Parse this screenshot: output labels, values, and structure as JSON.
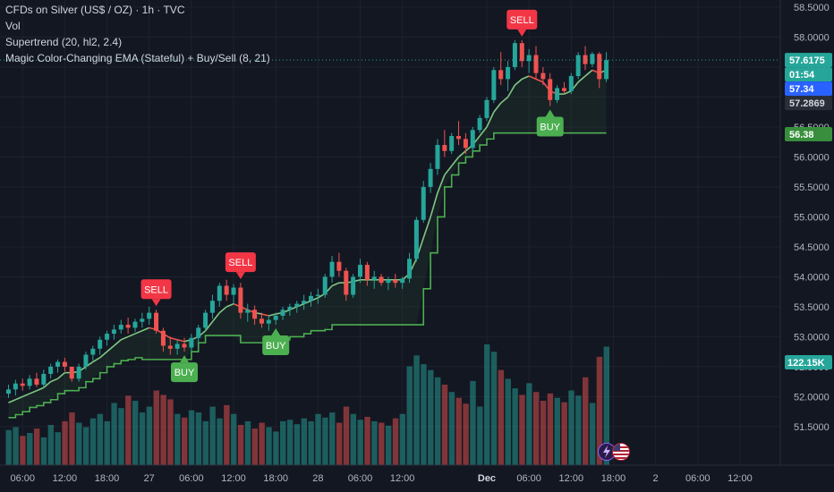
{
  "legend": {
    "title": "CFDs on Silver (US$ / OZ) · 1h · TVC",
    "vol": "Vol",
    "supertrend": "Supertrend (20, hl2, 2.4)",
    "ema": "Magic Color-Changing EMA (Stateful) + Buy/Sell (8, 21)"
  },
  "icons": [
    "bolt-icon",
    "us-flag-icon"
  ],
  "colors": {
    "background": "#131722",
    "up": "#26a69a",
    "down": "#ef5350",
    "supertrend": "#4caf50",
    "ema": "#81c784",
    "buy_label": "#4caf50",
    "sell_label": "#f23645",
    "last_price_badge": "#26a69a",
    "countdown_badge": "#2962ff"
  },
  "chart_data": {
    "type": "candlestick",
    "symbol": "CFDs on Silver (US$ / OZ)",
    "interval": "1h",
    "yaxis": {
      "range": [
        51.2,
        58.5
      ],
      "ticks": [
        "51.5000",
        "52.0000",
        "52.5000",
        "53.0000",
        "53.5000",
        "54.0000",
        "54.5000",
        "55.0000",
        "55.5000",
        "56.0000",
        "56.5000",
        "57.0000",
        "57.5000",
        "58.0000",
        "58.5000"
      ]
    },
    "xaxis": {
      "ticks": [
        {
          "label": "06:00",
          "i": 2
        },
        {
          "label": "12:00",
          "i": 8
        },
        {
          "label": "18:00",
          "i": 14
        },
        {
          "label": "27",
          "i": 20
        },
        {
          "label": "06:00",
          "i": 26
        },
        {
          "label": "12:00",
          "i": 32
        },
        {
          "label": "18:00",
          "i": 38
        },
        {
          "label": "28",
          "i": 44
        },
        {
          "label": "06:00",
          "i": 50
        },
        {
          "label": "12:00",
          "i": 56
        },
        {
          "label": "Dec",
          "i": 68
        },
        {
          "label": "06:00",
          "i": 74
        },
        {
          "label": "12:00",
          "i": 80
        },
        {
          "label": "18:00",
          "i": 86
        },
        {
          "label": "2",
          "i": 92
        },
        {
          "label": "06:00",
          "i": 98
        },
        {
          "label": "12:00",
          "i": 104
        }
      ]
    },
    "candles": [
      {
        "o": 52.05,
        "h": 52.2,
        "l": 51.98,
        "c": 52.12
      },
      {
        "o": 52.12,
        "h": 52.28,
        "l": 52.02,
        "c": 52.22
      },
      {
        "o": 52.22,
        "h": 52.3,
        "l": 52.1,
        "c": 52.18
      },
      {
        "o": 52.18,
        "h": 52.36,
        "l": 52.12,
        "c": 52.3
      },
      {
        "o": 52.3,
        "h": 52.4,
        "l": 52.16,
        "c": 52.2
      },
      {
        "o": 52.2,
        "h": 52.45,
        "l": 52.15,
        "c": 52.38
      },
      {
        "o": 52.38,
        "h": 52.55,
        "l": 52.3,
        "c": 52.5
      },
      {
        "o": 52.5,
        "h": 52.62,
        "l": 52.4,
        "c": 52.58
      },
      {
        "o": 52.58,
        "h": 52.65,
        "l": 52.42,
        "c": 52.5
      },
      {
        "o": 52.5,
        "h": 52.45,
        "l": 52.25,
        "c": 52.3
      },
      {
        "o": 52.3,
        "h": 52.55,
        "l": 52.25,
        "c": 52.5
      },
      {
        "o": 52.5,
        "h": 52.75,
        "l": 52.45,
        "c": 52.7
      },
      {
        "o": 52.7,
        "h": 52.85,
        "l": 52.6,
        "c": 52.8
      },
      {
        "o": 52.8,
        "h": 53.0,
        "l": 52.7,
        "c": 52.95
      },
      {
        "o": 52.95,
        "h": 53.1,
        "l": 52.85,
        "c": 53.05
      },
      {
        "o": 53.05,
        "h": 53.2,
        "l": 52.95,
        "c": 53.12
      },
      {
        "o": 53.12,
        "h": 53.28,
        "l": 53.05,
        "c": 53.2
      },
      {
        "o": 53.2,
        "h": 53.32,
        "l": 53.05,
        "c": 53.15
      },
      {
        "o": 53.15,
        "h": 53.3,
        "l": 53.08,
        "c": 53.25
      },
      {
        "o": 53.25,
        "h": 53.4,
        "l": 53.15,
        "c": 53.3
      },
      {
        "o": 53.3,
        "h": 53.5,
        "l": 53.2,
        "c": 53.4
      },
      {
        "o": 53.4,
        "h": 53.45,
        "l": 53.05,
        "c": 53.1
      },
      {
        "o": 53.1,
        "h": 53.15,
        "l": 52.75,
        "c": 52.85
      },
      {
        "o": 52.85,
        "h": 53.0,
        "l": 52.7,
        "c": 52.8
      },
      {
        "o": 52.8,
        "h": 52.95,
        "l": 52.7,
        "c": 52.88
      },
      {
        "o": 52.88,
        "h": 52.98,
        "l": 52.75,
        "c": 52.82
      },
      {
        "o": 52.82,
        "h": 53.05,
        "l": 52.75,
        "c": 52.98
      },
      {
        "o": 52.98,
        "h": 53.2,
        "l": 52.9,
        "c": 53.15
      },
      {
        "o": 53.15,
        "h": 53.45,
        "l": 53.1,
        "c": 53.4
      },
      {
        "o": 53.4,
        "h": 53.7,
        "l": 53.3,
        "c": 53.6
      },
      {
        "o": 53.6,
        "h": 53.9,
        "l": 53.5,
        "c": 53.85
      },
      {
        "o": 53.85,
        "h": 53.95,
        "l": 53.6,
        "c": 53.7
      },
      {
        "o": 53.7,
        "h": 53.88,
        "l": 53.55,
        "c": 53.82
      },
      {
        "o": 53.82,
        "h": 53.9,
        "l": 53.3,
        "c": 53.4
      },
      {
        "o": 53.4,
        "h": 53.55,
        "l": 53.25,
        "c": 53.45
      },
      {
        "o": 53.45,
        "h": 53.52,
        "l": 53.2,
        "c": 53.3
      },
      {
        "o": 53.3,
        "h": 53.4,
        "l": 53.15,
        "c": 53.22
      },
      {
        "o": 53.22,
        "h": 53.35,
        "l": 53.1,
        "c": 53.28
      },
      {
        "o": 53.28,
        "h": 53.4,
        "l": 53.2,
        "c": 53.35
      },
      {
        "o": 53.35,
        "h": 53.5,
        "l": 53.28,
        "c": 53.45
      },
      {
        "o": 53.45,
        "h": 53.55,
        "l": 53.35,
        "c": 53.5
      },
      {
        "o": 53.5,
        "h": 53.6,
        "l": 53.4,
        "c": 53.55
      },
      {
        "o": 53.55,
        "h": 53.7,
        "l": 53.45,
        "c": 53.6
      },
      {
        "o": 53.6,
        "h": 53.75,
        "l": 53.5,
        "c": 53.68
      },
      {
        "o": 53.68,
        "h": 53.8,
        "l": 53.55,
        "c": 53.7
      },
      {
        "o": 53.7,
        "h": 54.05,
        "l": 53.65,
        "c": 54.0
      },
      {
        "o": 54.0,
        "h": 54.35,
        "l": 53.9,
        "c": 54.25
      },
      {
        "o": 54.25,
        "h": 54.4,
        "l": 54.0,
        "c": 54.1
      },
      {
        "o": 54.1,
        "h": 54.15,
        "l": 53.6,
        "c": 53.7
      },
      {
        "o": 53.7,
        "h": 54.05,
        "l": 53.65,
        "c": 54.0
      },
      {
        "o": 54.0,
        "h": 54.3,
        "l": 53.9,
        "c": 54.2
      },
      {
        "o": 54.2,
        "h": 54.25,
        "l": 53.85,
        "c": 53.95
      },
      {
        "o": 53.95,
        "h": 54.1,
        "l": 53.8,
        "c": 54.0
      },
      {
        "o": 54.0,
        "h": 54.05,
        "l": 53.85,
        "c": 53.9
      },
      {
        "o": 53.9,
        "h": 54.0,
        "l": 53.78,
        "c": 53.95
      },
      {
        "o": 53.95,
        "h": 54.05,
        "l": 53.82,
        "c": 53.9
      },
      {
        "o": 53.9,
        "h": 54.0,
        "l": 53.8,
        "c": 53.97
      },
      {
        "o": 53.97,
        "h": 54.4,
        "l": 53.9,
        "c": 54.3
      },
      {
        "o": 54.3,
        "h": 55.0,
        "l": 54.25,
        "c": 54.95
      },
      {
        "o": 54.95,
        "h": 55.6,
        "l": 54.9,
        "c": 55.5
      },
      {
        "o": 55.5,
        "h": 55.9,
        "l": 55.4,
        "c": 55.8
      },
      {
        "o": 55.8,
        "h": 56.3,
        "l": 55.7,
        "c": 56.2
      },
      {
        "o": 56.2,
        "h": 56.45,
        "l": 56.0,
        "c": 56.1
      },
      {
        "o": 56.1,
        "h": 56.4,
        "l": 56.05,
        "c": 56.35
      },
      {
        "o": 56.35,
        "h": 56.6,
        "l": 56.2,
        "c": 56.3
      },
      {
        "o": 56.3,
        "h": 56.4,
        "l": 56.05,
        "c": 56.15
      },
      {
        "o": 56.15,
        "h": 56.5,
        "l": 56.1,
        "c": 56.45
      },
      {
        "o": 56.45,
        "h": 56.7,
        "l": 56.4,
        "c": 56.65
      },
      {
        "o": 56.65,
        "h": 57.0,
        "l": 56.6,
        "c": 56.95
      },
      {
        "o": 56.95,
        "h": 57.5,
        "l": 56.9,
        "c": 57.45
      },
      {
        "o": 57.45,
        "h": 57.75,
        "l": 57.2,
        "c": 57.3
      },
      {
        "o": 57.3,
        "h": 57.6,
        "l": 57.1,
        "c": 57.5
      },
      {
        "o": 57.5,
        "h": 57.95,
        "l": 57.45,
        "c": 57.9
      },
      {
        "o": 57.9,
        "h": 57.95,
        "l": 57.5,
        "c": 57.6
      },
      {
        "o": 57.6,
        "h": 57.8,
        "l": 57.4,
        "c": 57.7
      },
      {
        "o": 57.7,
        "h": 57.85,
        "l": 57.3,
        "c": 57.4
      },
      {
        "o": 57.4,
        "h": 57.5,
        "l": 57.2,
        "c": 57.3
      },
      {
        "o": 57.3,
        "h": 57.4,
        "l": 56.85,
        "c": 56.95
      },
      {
        "o": 56.95,
        "h": 57.2,
        "l": 56.9,
        "c": 57.15
      },
      {
        "o": 57.15,
        "h": 57.25,
        "l": 57.05,
        "c": 57.1
      },
      {
        "o": 57.1,
        "h": 57.4,
        "l": 57.05,
        "c": 57.35
      },
      {
        "o": 57.35,
        "h": 57.75,
        "l": 57.3,
        "c": 57.7
      },
      {
        "o": 57.7,
        "h": 57.85,
        "l": 57.45,
        "c": 57.55
      },
      {
        "o": 57.55,
        "h": 57.75,
        "l": 57.5,
        "c": 57.72
      },
      {
        "o": 57.72,
        "h": 57.75,
        "l": 57.15,
        "c": 57.3
      },
      {
        "o": 57.3,
        "h": 57.75,
        "l": 57.25,
        "c": 57.6175
      }
    ],
    "volume": [
      48,
      52,
      40,
      44,
      50,
      38,
      55,
      45,
      60,
      72,
      58,
      52,
      64,
      70,
      60,
      85,
      78,
      95,
      88,
      72,
      80,
      102,
      96,
      90,
      70,
      65,
      75,
      72,
      60,
      80,
      64,
      82,
      70,
      55,
      60,
      50,
      58,
      52,
      46,
      60,
      62,
      56,
      64,
      60,
      70,
      65,
      72,
      58,
      80,
      70,
      62,
      66,
      60,
      58,
      54,
      64,
      70,
      135,
      150,
      138,
      130,
      120,
      110,
      100,
      92,
      84,
      115,
      80,
      165,
      155,
      130,
      118,
      105,
      96,
      112,
      100,
      88,
      98,
      92,
      86,
      102,
      95,
      120,
      85,
      148,
      162
    ],
    "supertrend": [
      51.65,
      51.7,
      51.75,
      51.82,
      51.85,
      51.9,
      51.95,
      52.05,
      52.1,
      52.1,
      52.15,
      52.25,
      52.3,
      52.4,
      52.5,
      52.55,
      52.6,
      52.62,
      52.65,
      52.62,
      52.62,
      52.62,
      52.62,
      52.62,
      52.62,
      52.62,
      52.75,
      52.9,
      53.02,
      53.02,
      53.02,
      53.02,
      53.02,
      52.9,
      52.9,
      52.9,
      52.9,
      52.9,
      52.9,
      52.95,
      53.0,
      53.0,
      53.05,
      53.1,
      53.1,
      53.12,
      53.2,
      53.2,
      53.2,
      53.2,
      53.2,
      53.2,
      53.2,
      53.2,
      53.2,
      53.2,
      53.2,
      53.2,
      53.2,
      53.8,
      54.4,
      55.0,
      55.5,
      55.7,
      55.9,
      56.0,
      56.1,
      56.2,
      56.3,
      56.4,
      56.4,
      56.4,
      56.4,
      56.4,
      56.4,
      56.4,
      56.4,
      56.4,
      56.4,
      56.4,
      56.4,
      56.4,
      56.4,
      56.4,
      56.4,
      56.4
    ],
    "ema": [
      51.9,
      51.95,
      52.0,
      52.05,
      52.1,
      52.15,
      52.25,
      52.3,
      52.4,
      52.4,
      52.42,
      52.5,
      52.58,
      52.65,
      52.75,
      52.85,
      52.95,
      53.0,
      53.05,
      53.1,
      53.15,
      53.12,
      53.05,
      52.98,
      52.95,
      52.92,
      52.95,
      53.0,
      53.1,
      53.25,
      53.4,
      53.5,
      53.55,
      53.5,
      53.45,
      53.4,
      53.38,
      53.35,
      53.38,
      53.4,
      53.45,
      53.5,
      53.55,
      53.6,
      53.65,
      53.72,
      53.85,
      53.9,
      53.9,
      53.92,
      53.95,
      53.95,
      53.95,
      53.95,
      53.95,
      53.95,
      53.95,
      54.05,
      54.3,
      54.65,
      55.0,
      55.4,
      55.7,
      55.85,
      56.0,
      56.1,
      56.2,
      56.35,
      56.5,
      56.75,
      56.9,
      57.0,
      57.2,
      57.3,
      57.35,
      57.3,
      57.25,
      57.1,
      57.05,
      57.05,
      57.1,
      57.25,
      57.35,
      57.45,
      57.4,
      57.45
    ],
    "signals": [
      {
        "type": "SELL",
        "i": 21
      },
      {
        "type": "BUY",
        "i": 25
      },
      {
        "type": "SELL",
        "i": 33
      },
      {
        "type": "BUY",
        "i": 38
      },
      {
        "type": "SELL",
        "i": 73
      },
      {
        "type": "BUY",
        "i": 77
      }
    ],
    "price_labels": [
      {
        "text": "57.6175",
        "price": 57.6175,
        "kind": "last"
      },
      {
        "text": "01:54",
        "price": 57.6175,
        "kind": "countdown"
      },
      {
        "text": "57.34",
        "price": 57.34,
        "kind": "blue"
      },
      {
        "text": "57.2869",
        "price": 57.2869,
        "kind": "dark"
      },
      {
        "text": "56.38",
        "price": 56.38,
        "kind": "green"
      }
    ],
    "volume_label": "122.15K"
  }
}
